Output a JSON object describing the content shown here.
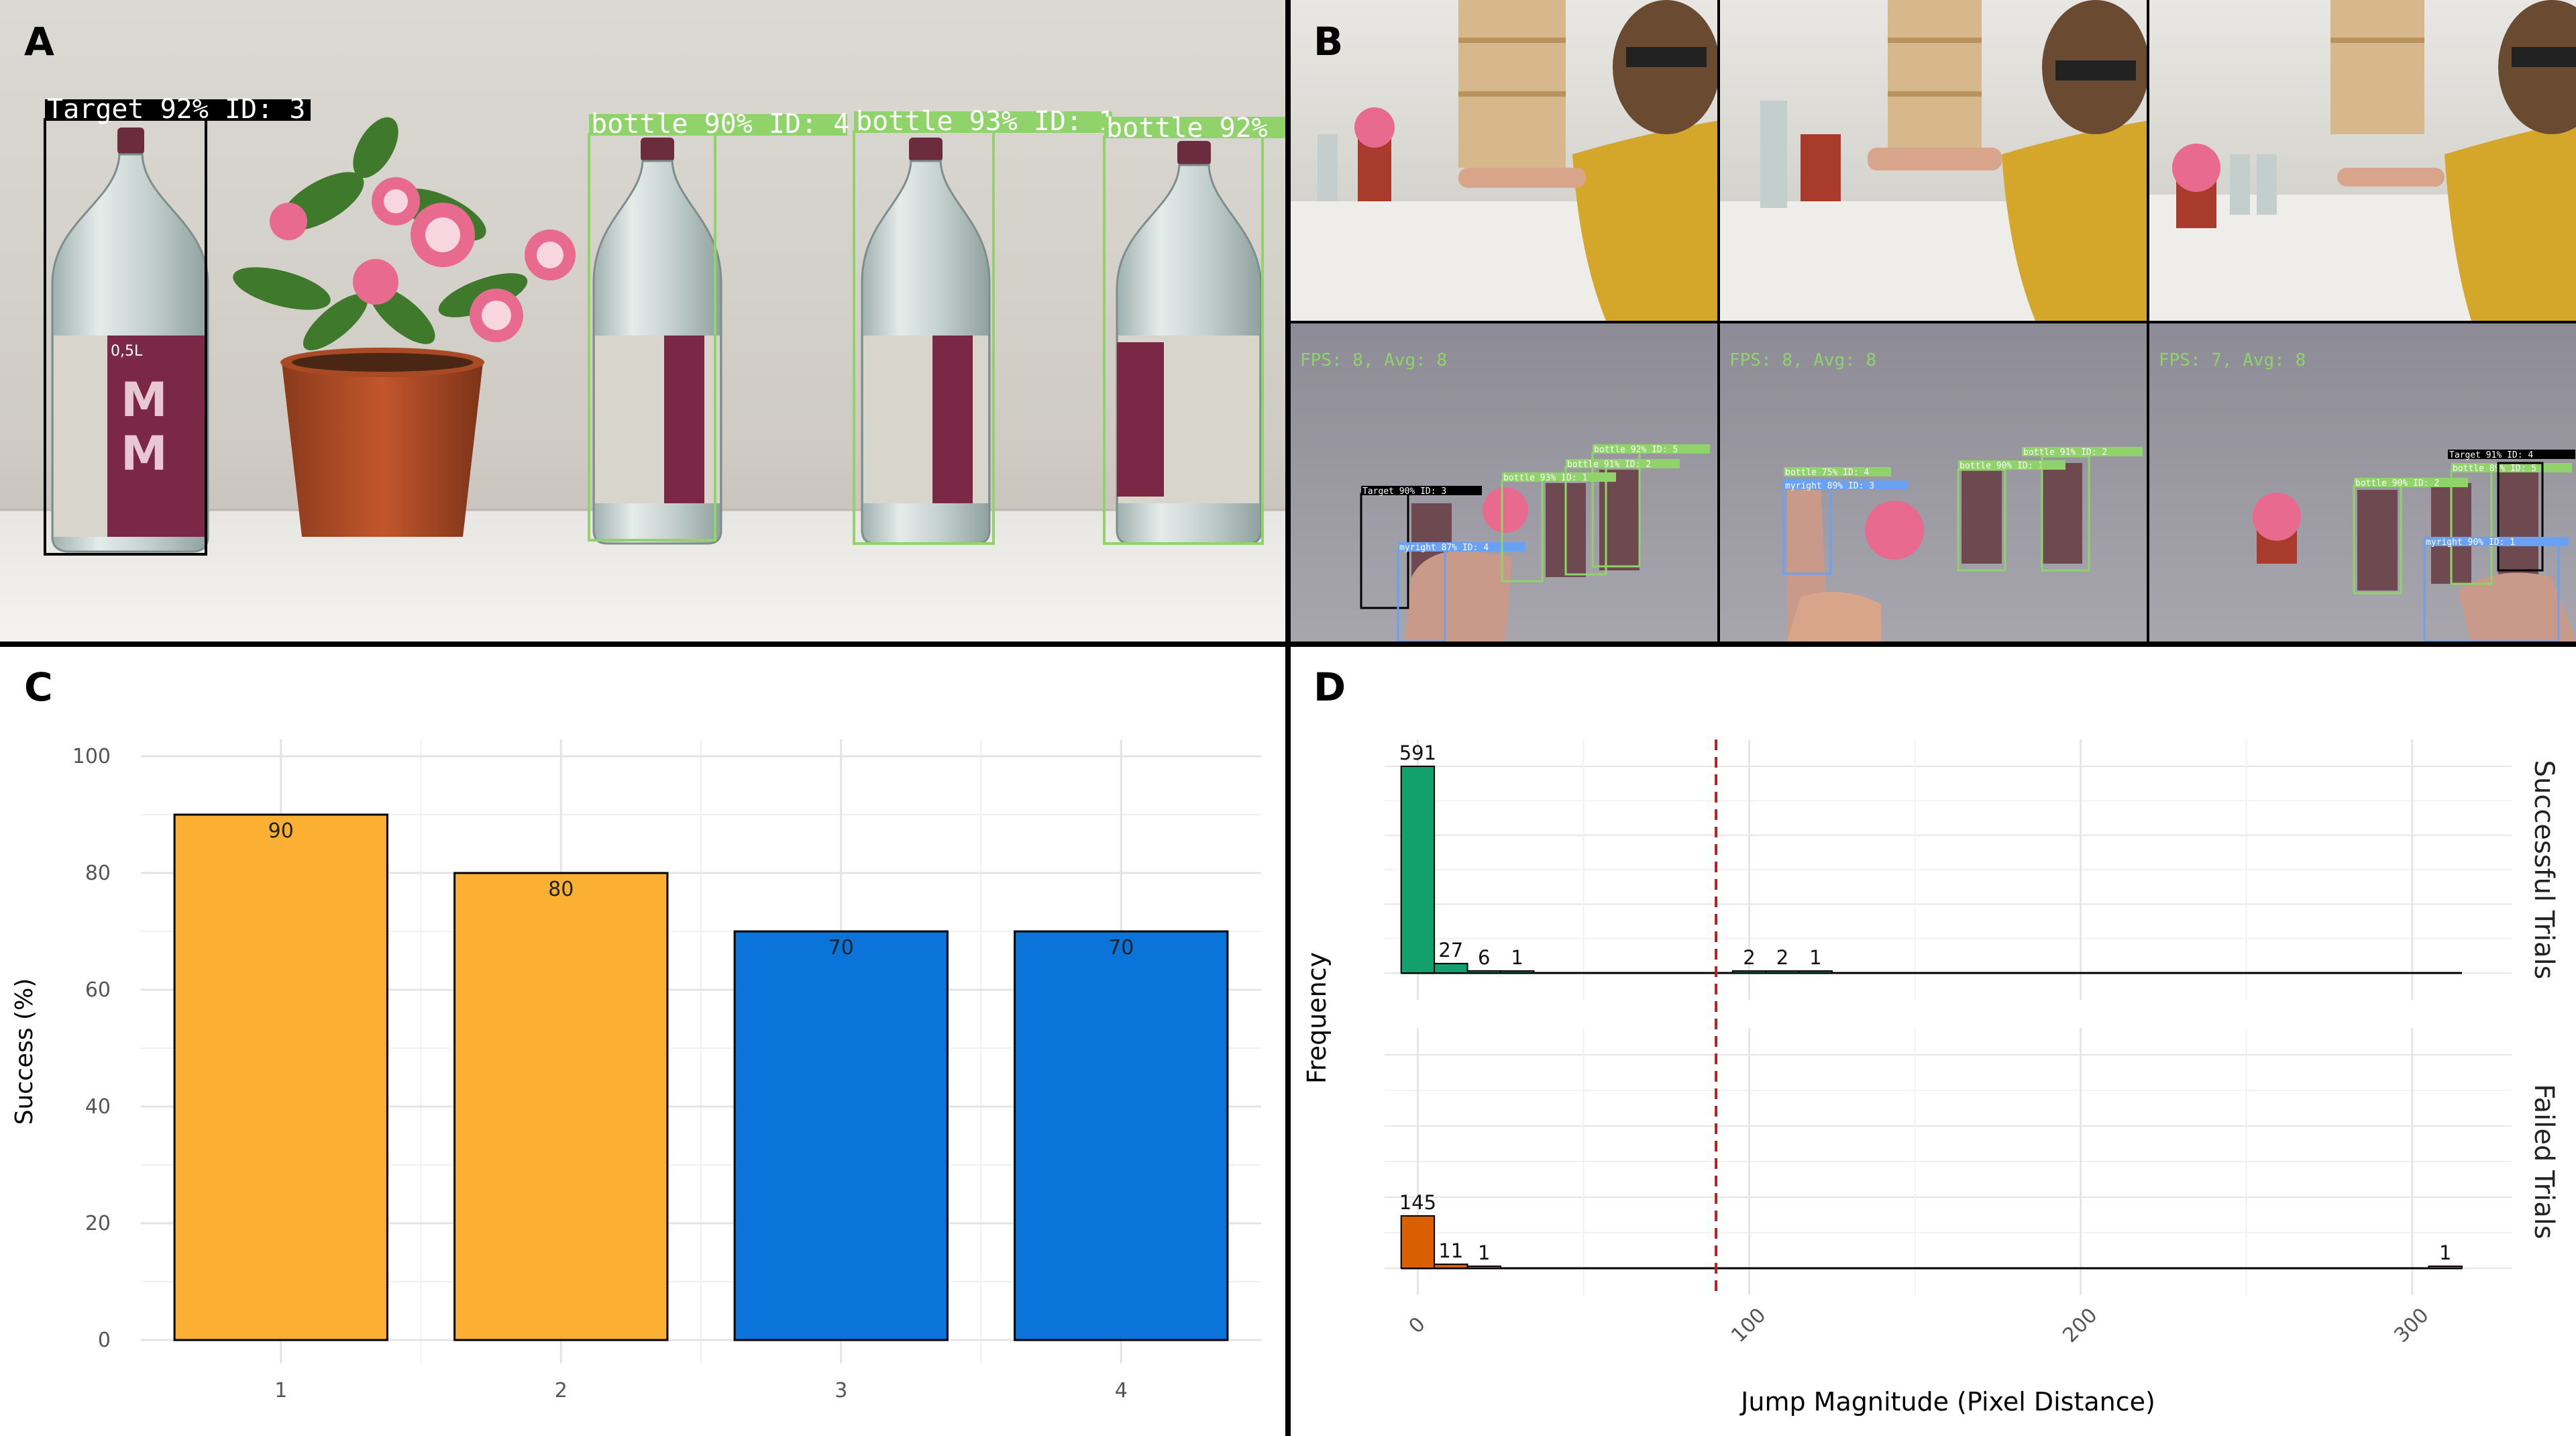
{
  "panels": {
    "a": {
      "letter": "A"
    },
    "b": {
      "letter": "B"
    },
    "c": {
      "letter": "C"
    },
    "d": {
      "letter": "D"
    }
  },
  "photo_a": {
    "detections": [
      {
        "label": "Target 92% ID: 3",
        "kind": "target"
      },
      {
        "label": "bottle 90% ID: 4",
        "kind": "bottle"
      },
      {
        "label": "bottle 93% ID: 1",
        "kind": "bottle"
      },
      {
        "label": "bottle 92% I",
        "kind": "bottle"
      }
    ],
    "bottle_text": {
      "volume": "0,5L"
    }
  },
  "photo_b": {
    "frames": [
      {
        "fps_text": "FPS: 8, Avg: 8",
        "detections": [
          {
            "label": "Target 90% ID: 3",
            "kind": "target"
          },
          {
            "label": "myright 87% ID: 4",
            "kind": "hand"
          },
          {
            "label": "bottle 93% ID: 1",
            "kind": "bottle"
          },
          {
            "label": "bottle 91% ID: 2",
            "kind": "bottle"
          },
          {
            "label": "bottle 92% ID: 5",
            "kind": "bottle"
          }
        ]
      },
      {
        "fps_text": "FPS: 8, Avg: 8",
        "detections": [
          {
            "label": "bottle 75% ID: 4",
            "kind": "bottle"
          },
          {
            "label": "myright 89% ID: 3",
            "kind": "hand"
          },
          {
            "label": "bottle 90% ID: 1",
            "kind": "bottle"
          },
          {
            "label": "bottle 91% ID: 2",
            "kind": "bottle"
          }
        ]
      },
      {
        "fps_text": "FPS: 7, Avg: 8",
        "detections": [
          {
            "label": "Target 91% ID: 4",
            "kind": "target"
          },
          {
            "label": "bottle 89% ID: 5",
            "kind": "bottle"
          },
          {
            "label": "bottle 90% ID: 2",
            "kind": "bottle"
          },
          {
            "label": "myright 90% ID: 1",
            "kind": "hand"
          }
        ]
      }
    ]
  },
  "chart_data": [
    {
      "type": "bar",
      "panel": "C",
      "categories": [
        "1",
        "2",
        "3",
        "4"
      ],
      "values": [
        90,
        80,
        70,
        70
      ],
      "data_labels": [
        "90",
        "80",
        "70",
        "70"
      ],
      "colors": [
        "#FBB034",
        "#FBB034",
        "#0A74DA",
        "#0A74DA"
      ],
      "ylabel": "Success (%)",
      "xlabel": "",
      "ylim": [
        0,
        100
      ],
      "yticks": [
        "0",
        "20",
        "40",
        "60",
        "80",
        "100"
      ],
      "grid": true
    },
    {
      "type": "bar",
      "subtype": "histogram",
      "panel": "D",
      "xlabel": "Jump Magnitude (Pixel Distance)",
      "ylabel": "Frequency",
      "xlim": [
        -10,
        330
      ],
      "xticks": [
        "0",
        "100",
        "200",
        "300"
      ],
      "vline": 90,
      "vline_color": "#B22222",
      "grid": true,
      "series": [
        {
          "name": "Successful Trials",
          "color": "#13A06F",
          "bins": [
            {
              "x": 0,
              "value": 591,
              "label": "591"
            },
            {
              "x": 10,
              "value": 27,
              "label": "27"
            },
            {
              "x": 20,
              "value": 6,
              "label": "6"
            },
            {
              "x": 30,
              "value": 1,
              "label": "1"
            },
            {
              "x": 100,
              "value": 2,
              "label": "2"
            },
            {
              "x": 110,
              "value": 2,
              "label": "2"
            },
            {
              "x": 120,
              "value": 1,
              "label": "1"
            }
          ],
          "ymax": 591
        },
        {
          "name": "Failed Trials",
          "color": "#D95F02",
          "bins": [
            {
              "x": 0,
              "value": 145,
              "label": "145"
            },
            {
              "x": 10,
              "value": 11,
              "label": "11"
            },
            {
              "x": 20,
              "value": 1,
              "label": "1"
            },
            {
              "x": 310,
              "value": 1,
              "label": "1"
            }
          ],
          "ymax": 591
        }
      ]
    }
  ]
}
